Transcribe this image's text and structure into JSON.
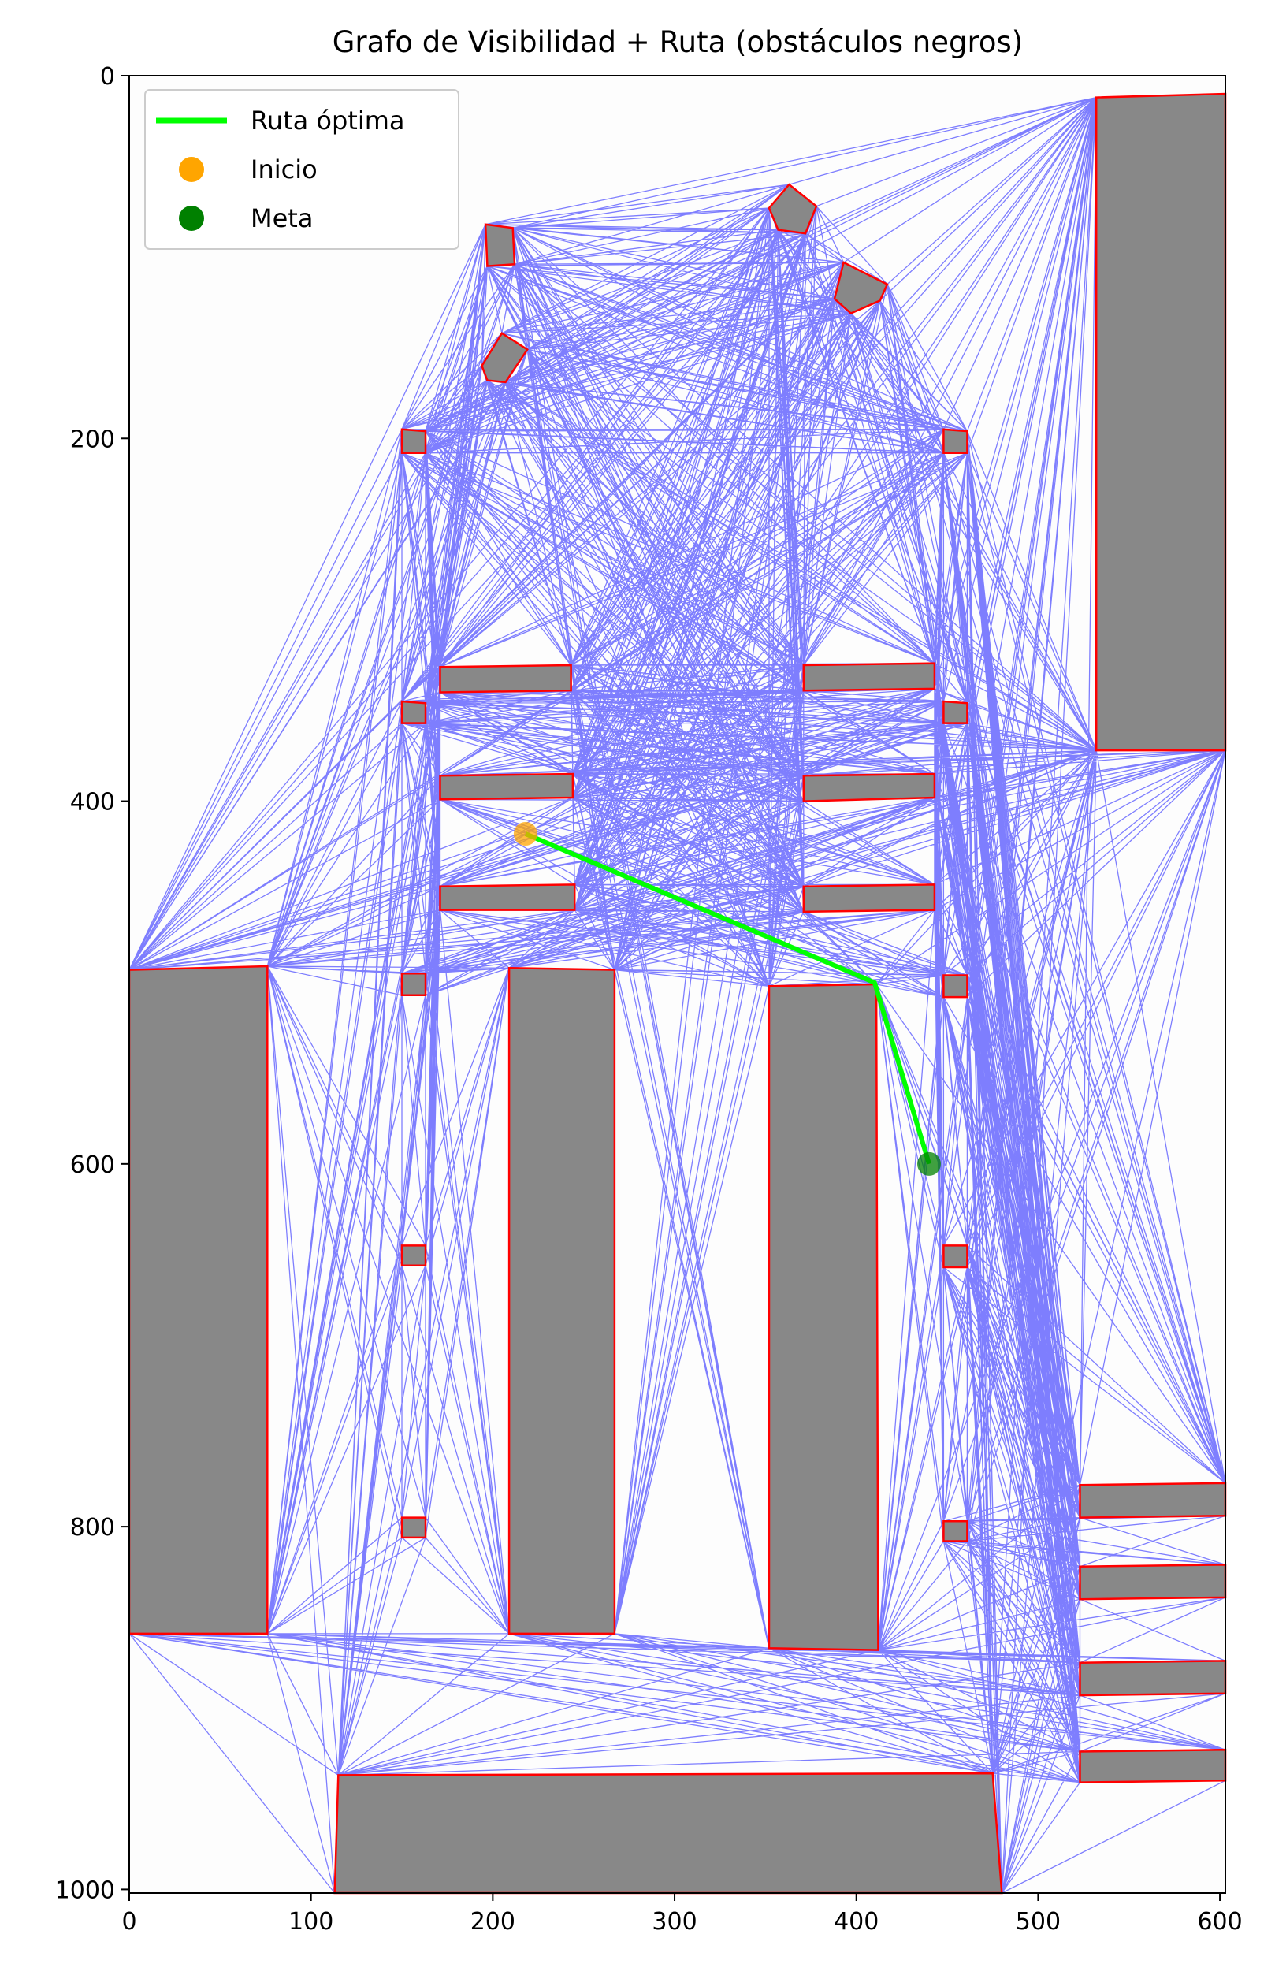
{
  "chart_data": {
    "type": "line",
    "title": "Grafo de Visibilidad + Ruta (obstáculos negros)",
    "xlabel": "",
    "ylabel": "",
    "xlim": [
      0,
      603
    ],
    "ylim": [
      1002,
      0
    ],
    "xticks": [
      0,
      100,
      200,
      300,
      400,
      500,
      600
    ],
    "yticks": [
      0,
      200,
      400,
      600,
      800,
      1000
    ],
    "grid": false,
    "legend": {
      "placement": "top-left",
      "entries": [
        {
          "label": "Ruta óptima",
          "kind": "line",
          "color": "#00ff00"
        },
        {
          "label": "Inicio",
          "kind": "marker",
          "color": "#ffa500"
        },
        {
          "label": "Meta",
          "kind": "marker",
          "color": "#008000"
        }
      ]
    },
    "colors": {
      "obstacle_fill": "#888888",
      "obstacle_edge": "#ff0000",
      "visibility_edge": "#0000ff",
      "route": "#00ff00",
      "start": "#ffa500",
      "goal": "#008000"
    },
    "start": [
      218,
      418
    ],
    "goal": [
      440,
      600
    ],
    "route": [
      [
        218,
        418
      ],
      [
        410,
        500
      ],
      [
        440,
        600
      ]
    ],
    "obstacles": [
      [
        [
          532,
          12
        ],
        [
          603,
          10
        ],
        [
          603,
          372
        ],
        [
          532,
          372
        ]
      ],
      [
        [
          196,
          82
        ],
        [
          211,
          84
        ],
        [
          212,
          104
        ],
        [
          197,
          105
        ]
      ],
      [
        [
          363,
          60
        ],
        [
          378,
          72
        ],
        [
          372,
          87
        ],
        [
          357,
          85
        ],
        [
          352,
          73
        ]
      ],
      [
        [
          393,
          103
        ],
        [
          417,
          115
        ],
        [
          413,
          124
        ],
        [
          397,
          131
        ],
        [
          388,
          123
        ]
      ],
      [
        [
          194,
          160
        ],
        [
          205,
          142
        ],
        [
          219,
          151
        ],
        [
          207,
          169
        ],
        [
          197,
          168
        ]
      ],
      [
        [
          150,
          195
        ],
        [
          163,
          196
        ],
        [
          163,
          208
        ],
        [
          150,
          208
        ]
      ],
      [
        [
          448,
          195
        ],
        [
          461,
          196
        ],
        [
          461,
          208
        ],
        [
          448,
          208
        ]
      ],
      [
        [
          171,
          326
        ],
        [
          243,
          325
        ],
        [
          243,
          339
        ],
        [
          171,
          340
        ]
      ],
      [
        [
          371,
          325
        ],
        [
          443,
          324
        ],
        [
          443,
          338
        ],
        [
          371,
          339
        ]
      ],
      [
        [
          150,
          345
        ],
        [
          163,
          346
        ],
        [
          163,
          357
        ],
        [
          150,
          357
        ]
      ],
      [
        [
          448,
          345
        ],
        [
          461,
          346
        ],
        [
          461,
          357
        ],
        [
          448,
          357
        ]
      ],
      [
        [
          171,
          386
        ],
        [
          244,
          385
        ],
        [
          244,
          398
        ],
        [
          171,
          399
        ]
      ],
      [
        [
          371,
          386
        ],
        [
          443,
          385
        ],
        [
          443,
          398
        ],
        [
          371,
          400
        ]
      ],
      [
        [
          171,
          447
        ],
        [
          245,
          446
        ],
        [
          245,
          460
        ],
        [
          171,
          460
        ]
      ],
      [
        [
          371,
          447
        ],
        [
          443,
          446
        ],
        [
          443,
          460
        ],
        [
          371,
          461
        ]
      ],
      [
        [
          150,
          495
        ],
        [
          163,
          495
        ],
        [
          163,
          507
        ],
        [
          150,
          507
        ]
      ],
      [
        [
          448,
          496
        ],
        [
          461,
          496
        ],
        [
          461,
          508
        ],
        [
          448,
          508
        ]
      ],
      [
        [
          0,
          493
        ],
        [
          76,
          491
        ],
        [
          76,
          859
        ],
        [
          0,
          859
        ]
      ],
      [
        [
          209,
          492
        ],
        [
          267,
          493
        ],
        [
          267,
          859
        ],
        [
          209,
          859
        ]
      ],
      [
        [
          352,
          502
        ],
        [
          411,
          501
        ],
        [
          412,
          868
        ],
        [
          352,
          867
        ]
      ],
      [
        [
          150,
          645
        ],
        [
          163,
          645
        ],
        [
          163,
          656
        ],
        [
          150,
          656
        ]
      ],
      [
        [
          448,
          645
        ],
        [
          461,
          645
        ],
        [
          461,
          657
        ],
        [
          448,
          657
        ]
      ],
      [
        [
          150,
          795
        ],
        [
          163,
          795
        ],
        [
          163,
          806
        ],
        [
          150,
          806
        ]
      ],
      [
        [
          448,
          797
        ],
        [
          461,
          797
        ],
        [
          461,
          808
        ],
        [
          448,
          808
        ]
      ],
      [
        [
          523,
          777
        ],
        [
          603,
          776
        ],
        [
          603,
          794
        ],
        [
          523,
          795
        ]
      ],
      [
        [
          523,
          822
        ],
        [
          603,
          821
        ],
        [
          603,
          839
        ],
        [
          523,
          840
        ]
      ],
      [
        [
          523,
          875
        ],
        [
          603,
          874
        ],
        [
          603,
          892
        ],
        [
          523,
          893
        ]
      ],
      [
        [
          523,
          924
        ],
        [
          603,
          923
        ],
        [
          603,
          940
        ],
        [
          523,
          941
        ]
      ],
      [
        [
          115,
          937
        ],
        [
          475,
          936
        ],
        [
          480,
          1002
        ],
        [
          113,
          1002
        ]
      ]
    ]
  }
}
